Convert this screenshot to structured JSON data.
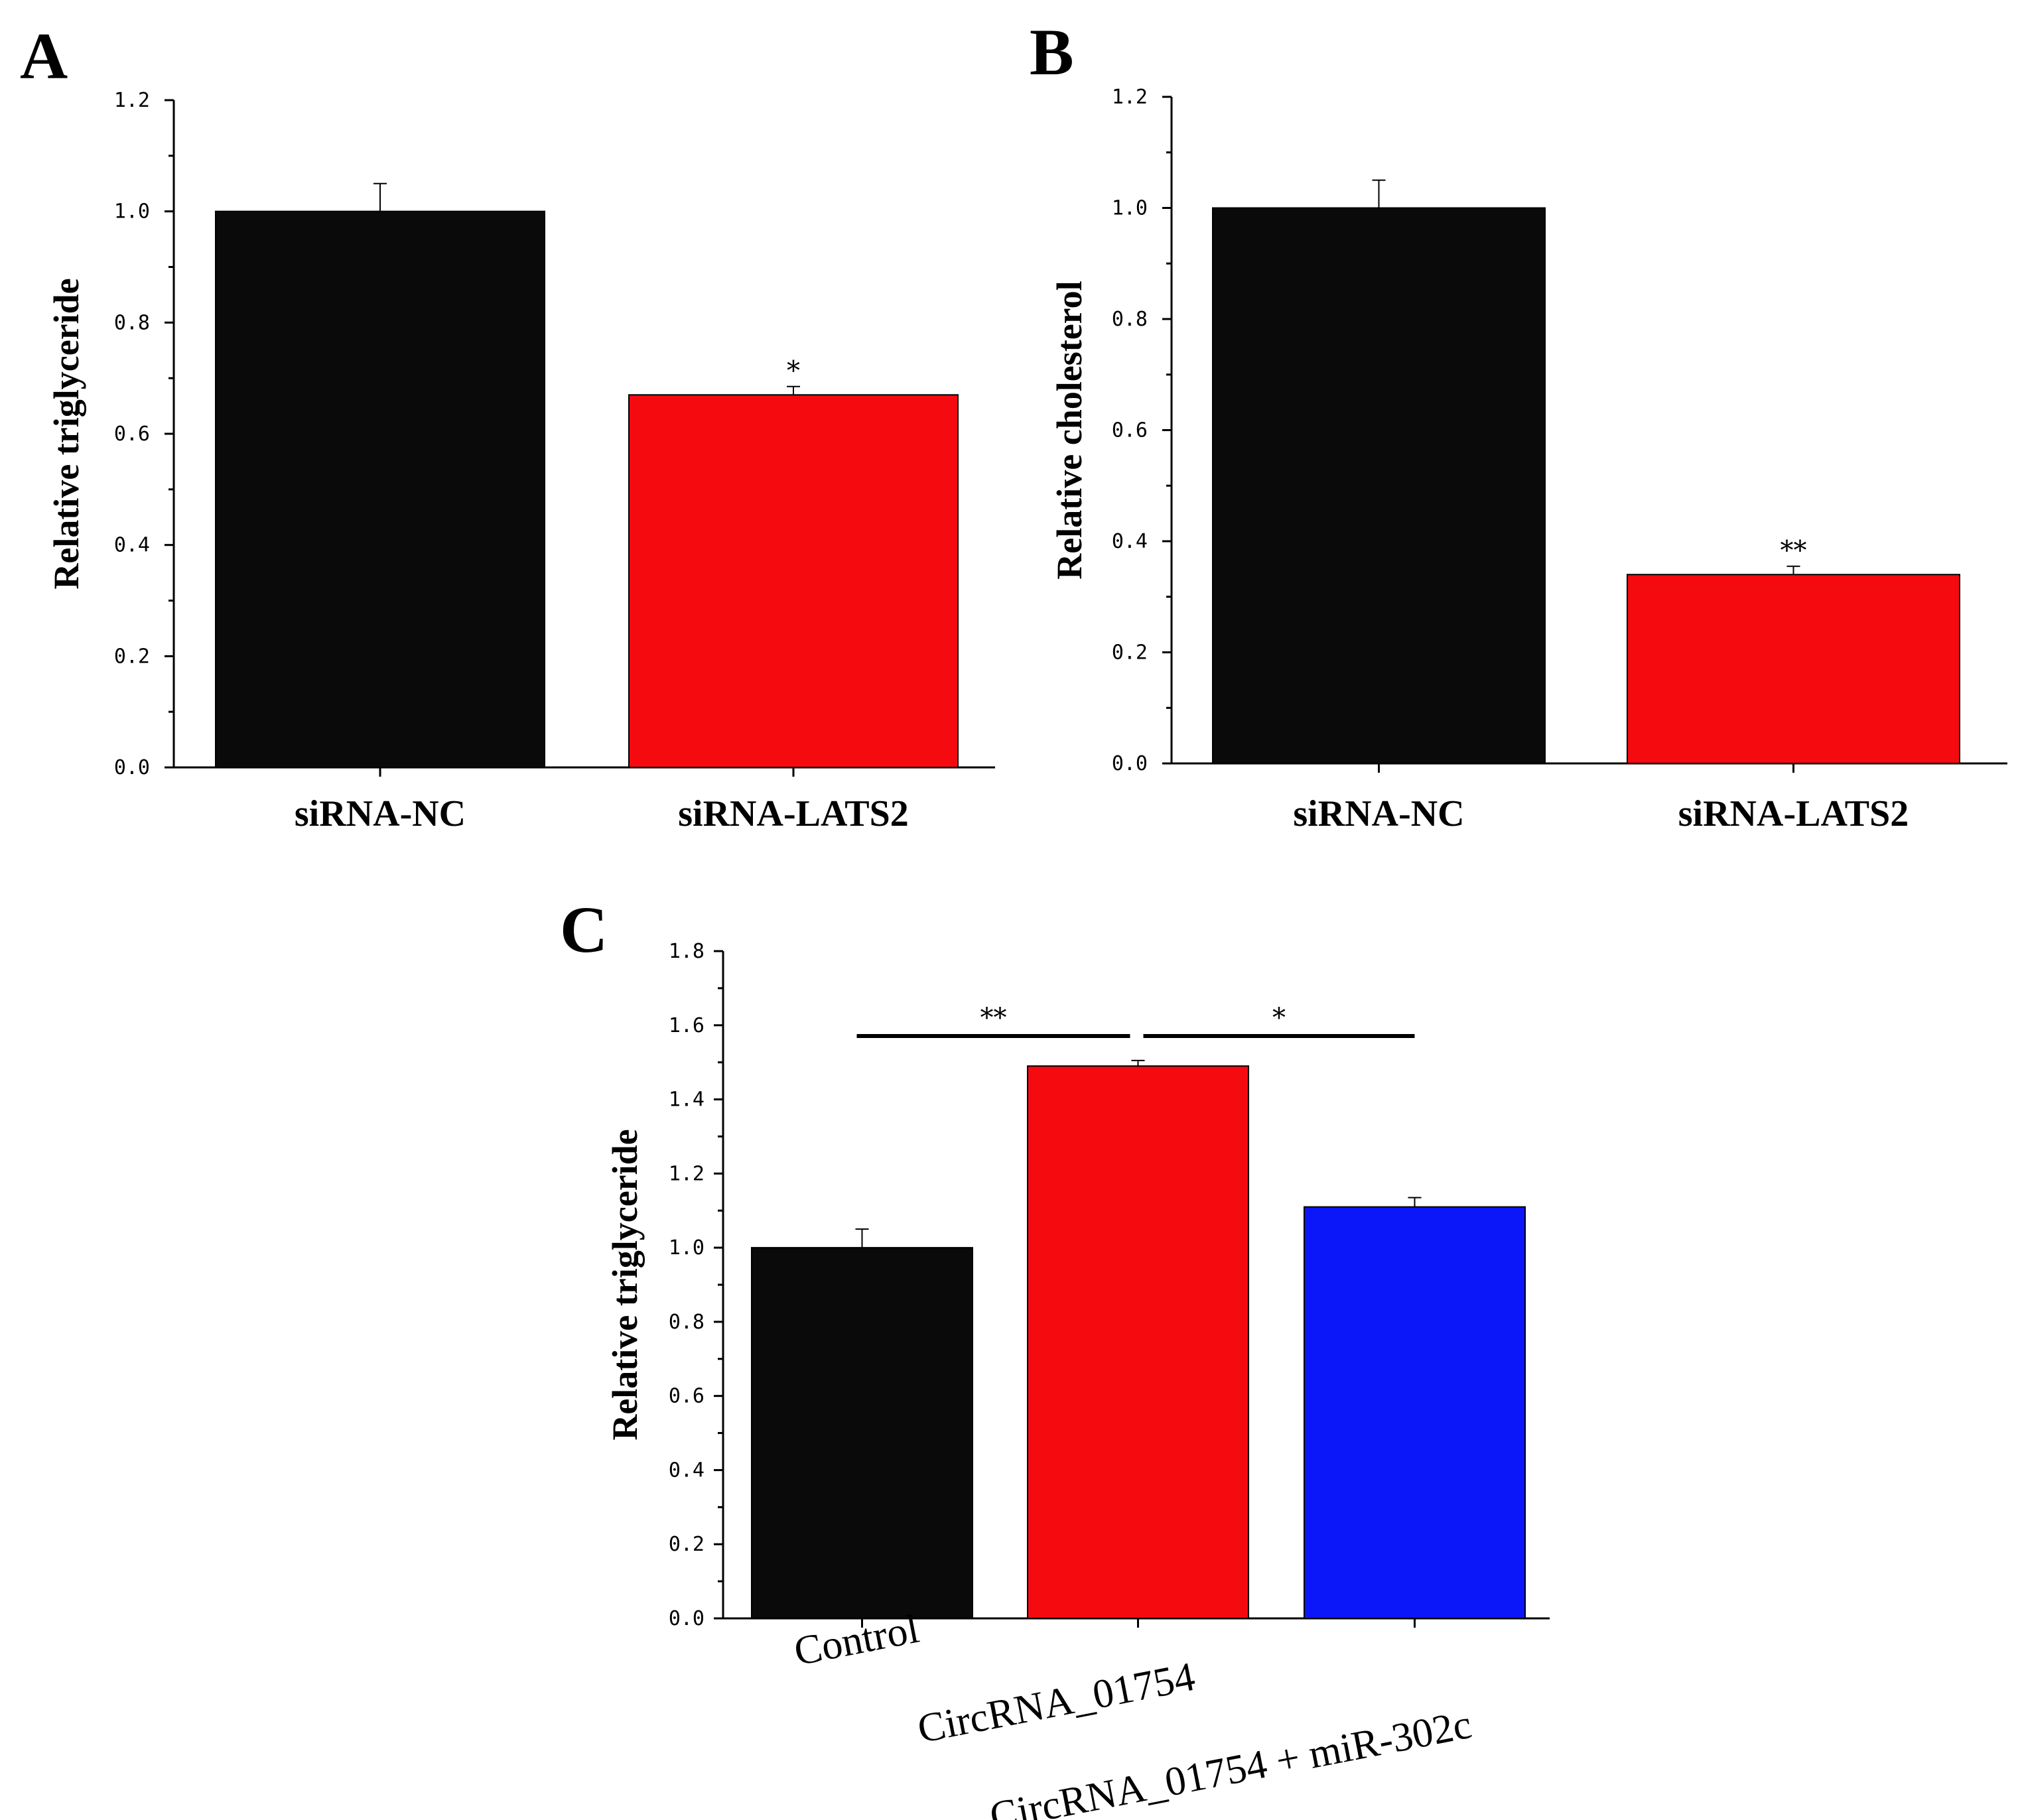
{
  "figure": {
    "panels": [
      "A",
      "B",
      "C"
    ]
  },
  "chart_data": [
    {
      "panel": "A",
      "type": "bar",
      "ylabel": "Relative triglyceride",
      "xlabel": "",
      "ylim": [
        0,
        1.2
      ],
      "yticks": [
        "0.0",
        "0.2",
        "0.4",
        "0.6",
        "0.8",
        "1.0",
        "1.2"
      ],
      "categories": [
        "siRNA-NC",
        "siRNA-LATS2"
      ],
      "values": [
        1.0,
        0.67
      ],
      "errors": [
        0.05,
        0.015
      ],
      "colors": [
        "#0a0a0a",
        "#f50a0f"
      ],
      "significance": [
        "",
        "*"
      ]
    },
    {
      "panel": "B",
      "type": "bar",
      "ylabel": "Relative cholesterol",
      "xlabel": "",
      "ylim": [
        0,
        1.2
      ],
      "yticks": [
        "0.0",
        "0.2",
        "0.4",
        "0.6",
        "0.8",
        "1.0",
        "1.2"
      ],
      "categories": [
        "siRNA-NC",
        "siRNA-LATS2"
      ],
      "values": [
        1.0,
        0.34
      ],
      "errors": [
        0.05,
        0.015
      ],
      "colors": [
        "#0a0a0a",
        "#f50a0f"
      ],
      "significance": [
        "",
        "**"
      ]
    },
    {
      "panel": "C",
      "type": "bar",
      "ylabel": "Relative triglyceride",
      "xlabel": "",
      "ylim": [
        0,
        1.8
      ],
      "yticks": [
        "0.0",
        "0.2",
        "0.4",
        "0.6",
        "0.8",
        "1.0",
        "1.2",
        "1.4",
        "1.6",
        "1.8"
      ],
      "categories": [
        "Control",
        "CircRNA_01754",
        "CircRNA_01754 + miR-302c"
      ],
      "values": [
        1.0,
        1.49,
        1.11
      ],
      "errors": [
        0.05,
        0.015,
        0.025
      ],
      "colors": [
        "#0a0a0a",
        "#f50a0f",
        "#0b17f8"
      ],
      "comparisons": [
        {
          "from": 0,
          "to": 1,
          "label": "**"
        },
        {
          "from": 1,
          "to": 2,
          "label": "*"
        }
      ]
    }
  ]
}
